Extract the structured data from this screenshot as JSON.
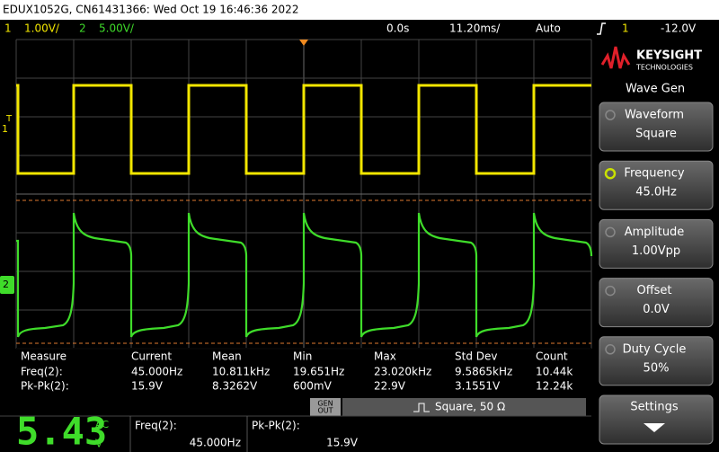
{
  "header": {
    "title": "EDUX1052G, CN61431366: Wed Oct 19 16:46:36 2022"
  },
  "status_bar": {
    "ch1_number": "1",
    "ch1_scale": "1.00V/",
    "ch2_number": "2",
    "ch2_scale": "5.00V/",
    "time_offset": "0.0s",
    "time_scale": "11.20ms/",
    "trigger_mode": "Auto",
    "trigger_source": "1",
    "trigger_level": "-12.0V"
  },
  "display": {
    "trigger_marker": "T",
    "ch1_marker": "1",
    "ch2_marker": "2"
  },
  "measurements": {
    "header": [
      "Measure",
      "Current",
      "Mean",
      "Min",
      "Max",
      "Std Dev",
      "Count"
    ],
    "rows": [
      [
        "Freq(2):",
        "45.000Hz",
        "10.811kHz",
        "19.651Hz",
        "23.020kHz",
        "9.5865kHz",
        "10.44k"
      ],
      [
        "Pk-Pk(2):",
        "15.9V",
        "8.3262V",
        "600mV",
        "22.9V",
        "3.1551V",
        "12.24k"
      ]
    ]
  },
  "wave_gen_bar": {
    "gen_out": [
      "GEN",
      "OUT"
    ],
    "status": "Square, 50 Ω"
  },
  "meter": {
    "reading": "5.43",
    "coupling": "AC",
    "unit": "V"
  },
  "quick_measurements": [
    {
      "label": "Freq(2):",
      "value": "45.000Hz"
    },
    {
      "label": "Pk-Pk(2):",
      "value": "15.9V"
    }
  ],
  "softkeys": {
    "brand": "KEYSIGHT",
    "brand_sub": "TECHNOLOGIES",
    "menu_title": "Wave Gen",
    "buttons": [
      {
        "label": "Waveform",
        "value": "Square"
      },
      {
        "label": "Frequency",
        "value": "45.0Hz"
      },
      {
        "label": "Amplitude",
        "value": "1.00Vpp"
      },
      {
        "label": "Offset",
        "value": "0.0V"
      },
      {
        "label": "Duty Cycle",
        "value": "50%"
      },
      {
        "label": "Settings"
      }
    ]
  }
}
